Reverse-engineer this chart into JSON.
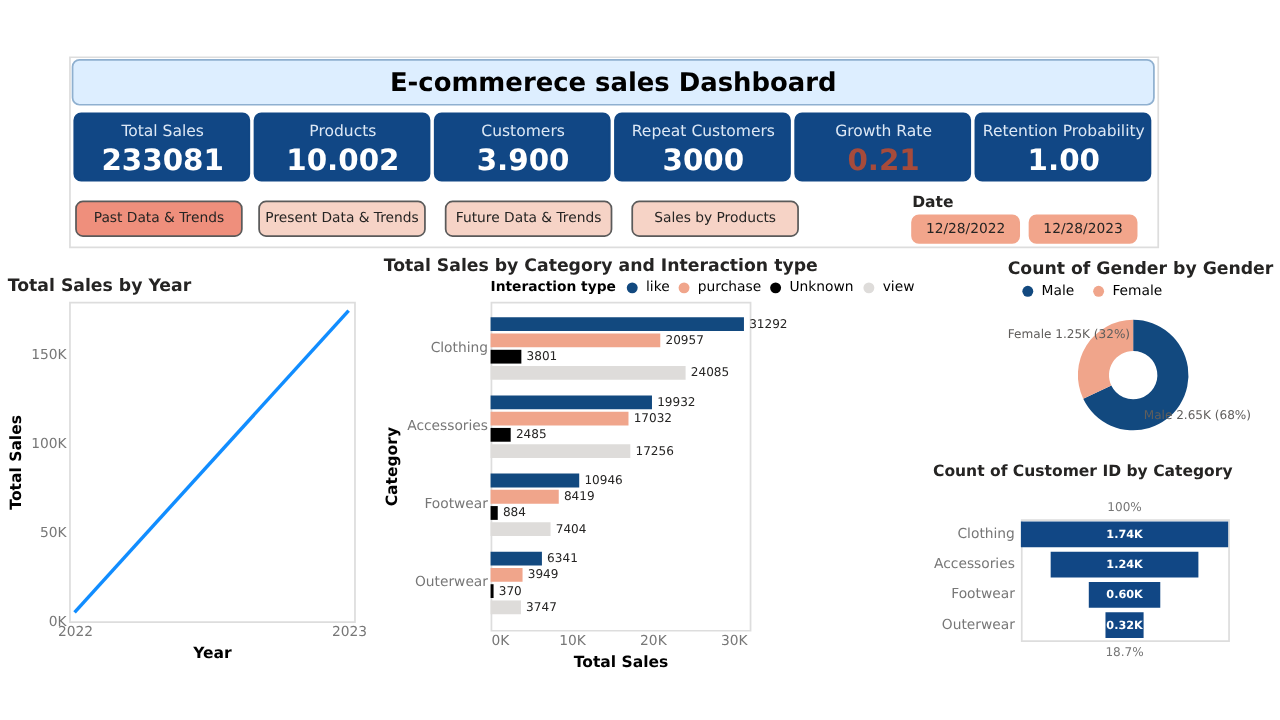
{
  "chart_data": [
    {
      "type": "other",
      "title": "E-commerece sales Dashboard",
      "annotations": [
        "Total Sales",
        "233081",
        "Products",
        "10.002",
        "Customers",
        "3.900",
        "Repeat Customers",
        "3000",
        "Growth Rate",
        "0.21",
        "Retention Probability",
        "1.00",
        "Past Data & Trends",
        "Present Data & Trends",
        "Future Data & Trends",
        "Sales by Products",
        "Date",
        "12/28/2022",
        "12/28/2023"
      ]
    },
    {
      "type": "line",
      "title": "Total Sales by Year",
      "xlabel": "Year",
      "ylabel": "Total Sales",
      "categories": [
        "2022",
        "2023"
      ],
      "series": [
        {
          "color": "#118dff",
          "values": [
            5000,
            175000
          ]
        }
      ],
      "ylim": [
        0,
        180000
      ],
      "yticks": [
        {
          "value": 0,
          "label": "0K"
        },
        {
          "value": 50000,
          "label": "50K"
        },
        {
          "value": 100000,
          "label": "100K"
        },
        {
          "value": 150000,
          "label": "150K"
        }
      ],
      "marker": "none"
    },
    {
      "type": "bar",
      "orientation": "horizontal",
      "title": "Total Sales by Category and Interaction type",
      "xlabel": "Total Sales",
      "ylabel": "Category",
      "legend_title": "Interaction type",
      "legend": "top",
      "data_labels": true,
      "categories": [
        "Clothing",
        "Accessories",
        "Footwear",
        "Outerwear"
      ],
      "series": [
        {
          "name": "like",
          "color": "#12497f",
          "values": [
            31292,
            19932,
            10946,
            6341
          ]
        },
        {
          "name": "purchase",
          "color": "#f0a58b",
          "values": [
            20957,
            17032,
            8419,
            3949
          ]
        },
        {
          "name": "Unknown",
          "color": "#000000",
          "values": [
            3801,
            2485,
            884,
            370
          ]
        },
        {
          "name": "view",
          "color": "#dedcda",
          "values": [
            24085,
            17256,
            7404,
            3747
          ]
        }
      ],
      "xlim": [
        0,
        32000
      ],
      "xticks": [
        {
          "value": 0,
          "label": "0K"
        },
        {
          "value": 10000,
          "label": "10K"
        },
        {
          "value": 20000,
          "label": "20K"
        },
        {
          "value": 30000,
          "label": "30K"
        }
      ]
    },
    {
      "type": "donut",
      "title": "Count of Gender by Gender",
      "legend": "top left",
      "categories": [
        "Male",
        "Female"
      ],
      "values": [
        2650,
        1250
      ],
      "colors": [
        "#12497f",
        "#f0a58b"
      ],
      "value_labels": [
        "2.65K (68%)",
        "1.25K (32%)"
      ]
    },
    {
      "type": "other",
      "title": "Count of Customer ID by Category",
      "categories": [
        "Clothing",
        "Accessories",
        "Footwear",
        "Outerwear"
      ],
      "values": [
        1740,
        1240,
        600,
        320
      ],
      "value_labels": [
        "1.74K",
        "1.24K",
        "0.60K",
        "0.32K"
      ],
      "annotations": [
        "100%",
        "18.7%"
      ]
    }
  ]
}
